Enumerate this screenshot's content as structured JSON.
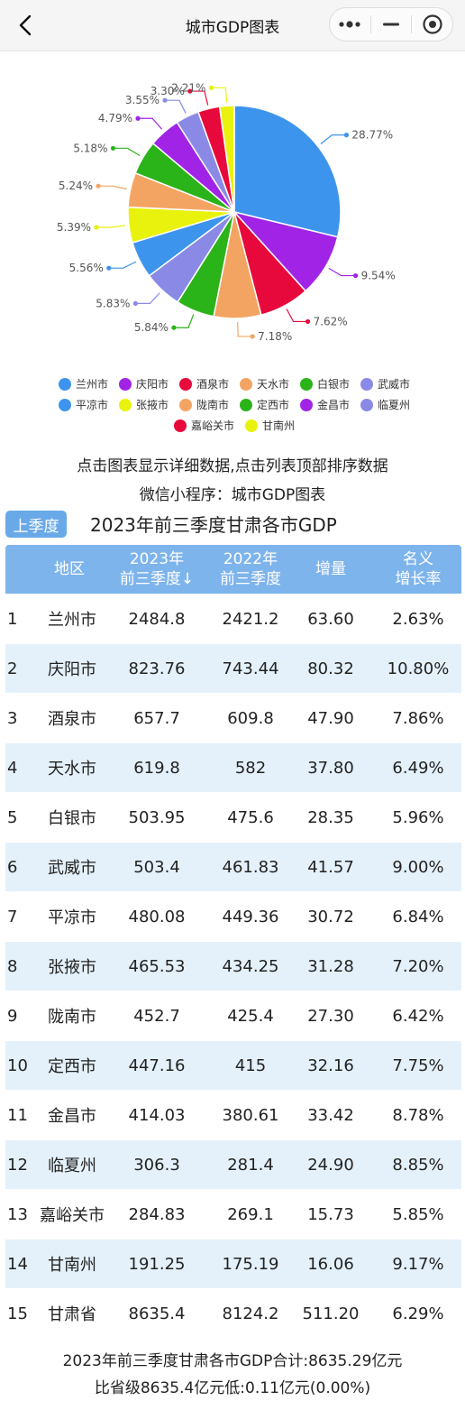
{
  "nav": {
    "title": "城市GDP图表"
  },
  "chart_data": {
    "type": "pie",
    "slices": [
      {
        "name": "兰州市",
        "value": 28.77,
        "label": "28.77%",
        "color": "#3d94ec"
      },
      {
        "name": "庆阳市",
        "value": 9.54,
        "label": "9.54%",
        "color": "#a124e6"
      },
      {
        "name": "酒泉市",
        "value": 7.62,
        "label": "7.62%",
        "color": "#e8093c"
      },
      {
        "name": "天水市",
        "value": 7.18,
        "label": "7.18%",
        "color": "#f4a462"
      },
      {
        "name": "白银市",
        "value": 5.84,
        "label": "5.84%",
        "color": "#2bb31a"
      },
      {
        "name": "武威市",
        "value": 5.83,
        "label": "5.83%",
        "color": "#8a8ae6"
      },
      {
        "name": "平凉市",
        "value": 5.56,
        "label": "5.56%",
        "color": "#3d94ec"
      },
      {
        "name": "张掖市",
        "value": 5.39,
        "label": "5.39%",
        "color": "#e8f20c"
      },
      {
        "name": "陇南市",
        "value": 5.24,
        "label": "5.24%",
        "color": "#f4a462"
      },
      {
        "name": "定西市",
        "value": 5.18,
        "label": "5.18%",
        "color": "#2bb31a"
      },
      {
        "name": "金昌市",
        "value": 4.79,
        "label": "4.79%",
        "color": "#a124e6"
      },
      {
        "name": "临夏州",
        "value": 3.55,
        "label": "3.55%",
        "color": "#8a8ae6"
      },
      {
        "name": "嘉峪关市",
        "value": 3.3,
        "label": "3.30%",
        "color": "#e8093c"
      },
      {
        "name": "甘南州",
        "value": 2.21,
        "label": "2.21%",
        "color": "#e8f20c"
      }
    ]
  },
  "hints": {
    "line1": "点击图表显示详细数据,点击列表顶部排序数据",
    "line2": "微信小程序：城市GDP图表"
  },
  "quarter_button": "上季度",
  "table_title": "2023年前三季度甘肃各市GDP",
  "table": {
    "headers": {
      "region": "地区",
      "y2023_l1": "2023年",
      "y2023_l2": "前三季度",
      "sort_icon": "↓",
      "y2022_l1": "2022年",
      "y2022_l2": "前三季度",
      "increase": "增量",
      "growth_l1": "名义",
      "growth_l2": "增长率"
    },
    "rows": [
      [
        "1",
        "兰州市",
        "2484.8",
        "2421.2",
        "63.60",
        "2.63%"
      ],
      [
        "2",
        "庆阳市",
        "823.76",
        "743.44",
        "80.32",
        "10.80%"
      ],
      [
        "3",
        "酒泉市",
        "657.7",
        "609.8",
        "47.90",
        "7.86%"
      ],
      [
        "4",
        "天水市",
        "619.8",
        "582",
        "37.80",
        "6.49%"
      ],
      [
        "5",
        "白银市",
        "503.95",
        "475.6",
        "28.35",
        "5.96%"
      ],
      [
        "6",
        "武威市",
        "503.4",
        "461.83",
        "41.57",
        "9.00%"
      ],
      [
        "7",
        "平凉市",
        "480.08",
        "449.36",
        "30.72",
        "6.84%"
      ],
      [
        "8",
        "张掖市",
        "465.53",
        "434.25",
        "31.28",
        "7.20%"
      ],
      [
        "9",
        "陇南市",
        "452.7",
        "425.4",
        "27.30",
        "6.42%"
      ],
      [
        "10",
        "定西市",
        "447.16",
        "415",
        "32.16",
        "7.75%"
      ],
      [
        "11",
        "金昌市",
        "414.03",
        "380.61",
        "33.42",
        "8.78%"
      ],
      [
        "12",
        "临夏州",
        "306.3",
        "281.4",
        "24.90",
        "8.85%"
      ],
      [
        "13",
        "嘉峪关市",
        "284.83",
        "269.1",
        "15.73",
        "5.85%"
      ],
      [
        "14",
        "甘南州",
        "191.25",
        "175.19",
        "16.06",
        "9.17%"
      ],
      [
        "15",
        "甘肃省",
        "8635.4",
        "8124.2",
        "511.20",
        "6.29%"
      ]
    ]
  },
  "summary": {
    "line1": "2023年前三季度甘肃各市GDP合计:8635.29亿元",
    "line2": "比省级8635.4亿元低:0.11亿元(0.00%)"
  }
}
